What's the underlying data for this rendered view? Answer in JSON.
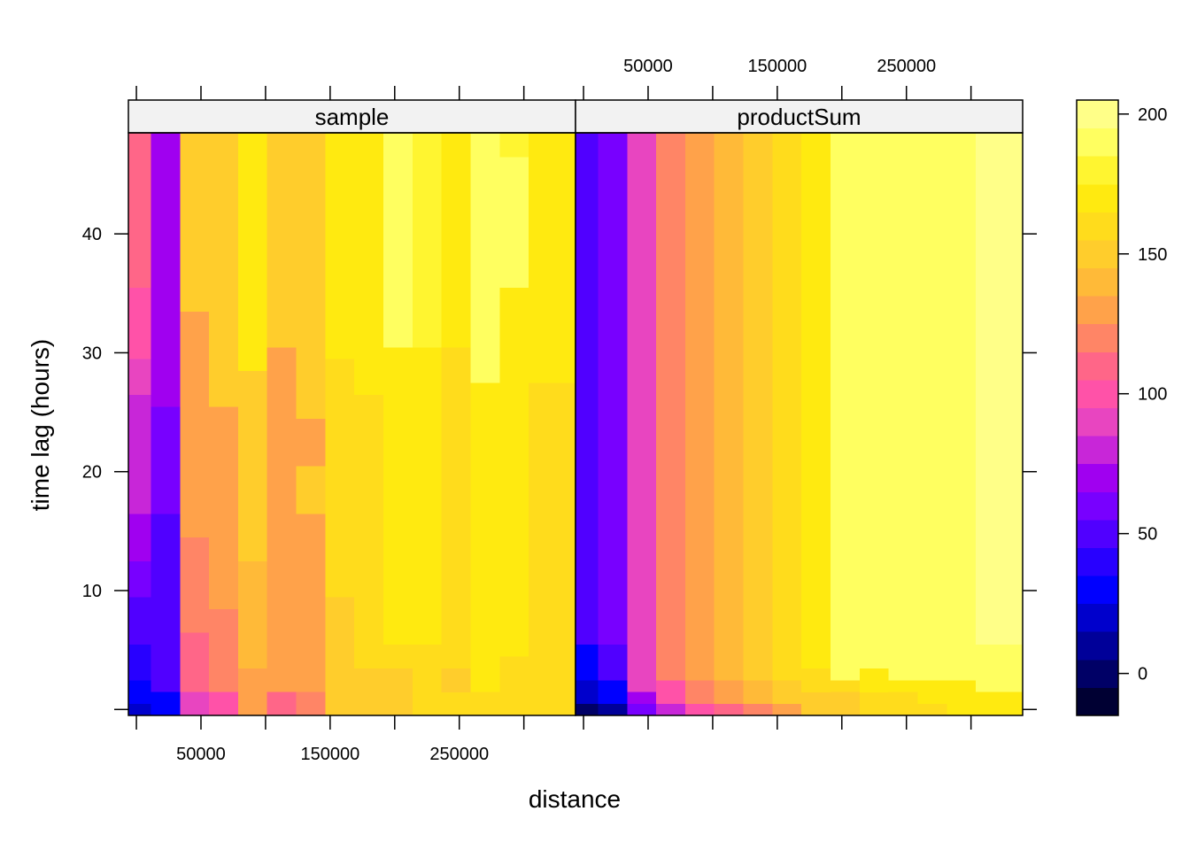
{
  "chart_data": {
    "type": "heatmap",
    "xlabel": "distance",
    "ylabel": "time lag (hours)",
    "x_ticks": [
      0,
      50000,
      100000,
      150000,
      200000,
      250000,
      300000,
      350000
    ],
    "x_tick_labels": [
      {
        "value": 50000,
        "label": "50000"
      },
      {
        "value": 150000,
        "label": "150000"
      },
      {
        "value": 250000,
        "label": "250000"
      }
    ],
    "y_ticks": [
      0,
      10,
      20,
      30,
      40
    ],
    "y_tick_labels": [
      {
        "value": 10,
        "label": "10"
      },
      {
        "value": 20,
        "label": "20"
      },
      {
        "value": 30,
        "label": "30"
      },
      {
        "value": 40,
        "label": "40"
      }
    ],
    "xlim": [
      -6200,
      340000
    ],
    "ylim": [
      -0.5,
      48.5
    ],
    "x_breaks": [
      0,
      22500,
      45000,
      67500,
      90000,
      112500,
      135000,
      157500,
      180000,
      202500,
      225000,
      247500,
      270000,
      292500,
      315000,
      337500
    ],
    "y_breaks": [
      0,
      1,
      2,
      3,
      4,
      5,
      6,
      7,
      8,
      9,
      10,
      11,
      12,
      13,
      14,
      15,
      16,
      17,
      18,
      19,
      20,
      21,
      22,
      23,
      24,
      25,
      26,
      27,
      28,
      29,
      30,
      31,
      32,
      33,
      34,
      35,
      36,
      37,
      38,
      39,
      40,
      41,
      42,
      43,
      44,
      45,
      46,
      47,
      48
    ],
    "colorbar": {
      "breaks": [
        -15,
        -5,
        5,
        15,
        25,
        35,
        45,
        55,
        65,
        75,
        85,
        95,
        105,
        115,
        125,
        135,
        145,
        155,
        165,
        175,
        185,
        195,
        205
      ],
      "colors": [
        "#000033",
        "#000066",
        "#000099",
        "#0000CC",
        "#0000FF",
        "#2800FF",
        "#5000FF",
        "#7800FF",
        "#A000F0",
        "#C826D8",
        "#E845C0",
        "#FF52A8",
        "#FF6688",
        "#FF8566",
        "#FFA24A",
        "#FFBA38",
        "#FFCD2C",
        "#FFDC1C",
        "#FFEA10",
        "#FFF530",
        "#FFFF60",
        "#FFFF88"
      ],
      "ticks": [
        {
          "value": 0,
          "label": "0"
        },
        {
          "value": 50,
          "label": "50"
        },
        {
          "value": 100,
          "label": "100"
        },
        {
          "value": 150,
          "label": "150"
        },
        {
          "value": 200,
          "label": "200"
        }
      ]
    },
    "panels": [
      {
        "name": "sample",
        "strip_label": "sample",
        "columns": [
          {
            "x_range": [
              0,
              22500
            ],
            "rows": [
              [
                0,
                1,
                20
              ],
              [
                1,
                3,
                30
              ],
              [
                3,
                6,
                40
              ],
              [
                6,
                10,
                50
              ],
              [
                10,
                13,
                60
              ],
              [
                13,
                17,
                70
              ],
              [
                17,
                22,
                75
              ],
              [
                22,
                27,
                80
              ],
              [
                27,
                30,
                90
              ],
              [
                30,
                36,
                100
              ],
              [
                36,
                48,
                105
              ]
            ]
          },
          {
            "x_range": [
              22500,
              45000
            ],
            "rows": [
              [
                0,
                2,
                25
              ],
              [
                2,
                7,
                45
              ],
              [
                7,
                17,
                50
              ],
              [
                17,
                22,
                55
              ],
              [
                22,
                26,
                60
              ],
              [
                26,
                48,
                65
              ]
            ]
          },
          {
            "x_range": [
              45000,
              67500
            ],
            "rows": [
              [
                0,
                2,
                90
              ],
              [
                2,
                7,
                105
              ],
              [
                7,
                15,
                115
              ],
              [
                15,
                34,
                130
              ],
              [
                34,
                48,
                145
              ]
            ]
          },
          {
            "x_range": [
              67500,
              90000
            ],
            "rows": [
              [
                0,
                2,
                100
              ],
              [
                2,
                9,
                115
              ],
              [
                9,
                26,
                130
              ],
              [
                26,
                48,
                145
              ]
            ]
          },
          {
            "x_range": [
              90000,
              112500
            ],
            "rows": [
              [
                0,
                4,
                130
              ],
              [
                4,
                13,
                140
              ],
              [
                13,
                29,
                150
              ],
              [
                29,
                48,
                170
              ]
            ]
          },
          {
            "x_range": [
              112500,
              135000
            ],
            "rows": [
              [
                0,
                2,
                105
              ],
              [
                2,
                13,
                125
              ],
              [
                13,
                31,
                130
              ],
              [
                31,
                48,
                145
              ]
            ]
          },
          {
            "x_range": [
              135000,
              157500
            ],
            "rows": [
              [
                0,
                2,
                115
              ],
              [
                2,
                13,
                125
              ],
              [
                13,
                17,
                130
              ],
              [
                17,
                21,
                150
              ],
              [
                21,
                25,
                130
              ],
              [
                25,
                48,
                145
              ]
            ]
          },
          {
            "x_range": [
              157500,
              180000
            ],
            "rows": [
              [
                0,
                10,
                145
              ],
              [
                10,
                30,
                155
              ],
              [
                30,
                48,
                170
              ]
            ]
          },
          {
            "x_range": [
              180000,
              202500
            ],
            "rows": [
              [
                0,
                4,
                145
              ],
              [
                4,
                10,
                155
              ],
              [
                10,
                27,
                160
              ],
              [
                27,
                48,
                170
              ]
            ]
          },
          {
            "x_range": [
              202500,
              225000
            ],
            "rows": [
              [
                0,
                4,
                145
              ],
              [
                4,
                6,
                155
              ],
              [
                6,
                31,
                170
              ],
              [
                31,
                48,
                185
              ]
            ]
          },
          {
            "x_range": [
              225000,
              247500
            ],
            "rows": [
              [
                0,
                4,
                155
              ],
              [
                4,
                6,
                160
              ],
              [
                6,
                31,
                170
              ],
              [
                31,
                48,
                180
              ]
            ]
          },
          {
            "x_range": [
              247500,
              270000
            ],
            "rows": [
              [
                0,
                2,
                155
              ],
              [
                2,
                4,
                145
              ],
              [
                4,
                31,
                160
              ],
              [
                31,
                48,
                170
              ]
            ]
          },
          {
            "x_range": [
              270000,
              292500
            ],
            "rows": [
              [
                0,
                2,
                160
              ],
              [
                2,
                28,
                170
              ],
              [
                28,
                48,
                185
              ]
            ]
          },
          {
            "x_range": [
              292500,
              315000
            ],
            "rows": [
              [
                0,
                5,
                160
              ],
              [
                5,
                36,
                170
              ],
              [
                36,
                47,
                185
              ],
              [
                47,
                48,
                180
              ]
            ]
          },
          {
            "x_range": [
              315000,
              337500
            ],
            "rows": [
              [
                0,
                2,
                160
              ],
              [
                2,
                4,
                155
              ],
              [
                4,
                28,
                160
              ],
              [
                28,
                48,
                170
              ]
            ]
          }
        ]
      },
      {
        "name": "productSum",
        "strip_label": "productSum",
        "columns": [
          {
            "x_range": [
              0,
              22500
            ],
            "rows": [
              [
                0,
                1,
                0
              ],
              [
                1,
                3,
                15
              ],
              [
                3,
                6,
                30
              ],
              [
                6,
                48,
                45
              ]
            ]
          },
          {
            "x_range": [
              22500,
              45000
            ],
            "rows": [
              [
                0,
                1,
                10
              ],
              [
                1,
                3,
                25
              ],
              [
                3,
                6,
                45
              ],
              [
                6,
                48,
                60
              ]
            ]
          },
          {
            "x_range": [
              45000,
              67500
            ],
            "rows": [
              [
                0,
                1,
                55
              ],
              [
                1,
                2,
                70
              ],
              [
                2,
                48,
                90
              ]
            ]
          },
          {
            "x_range": [
              67500,
              90000
            ],
            "rows": [
              [
                0,
                1,
                80
              ],
              [
                1,
                3,
                95
              ],
              [
                3,
                48,
                115
              ]
            ]
          },
          {
            "x_range": [
              90000,
              112500
            ],
            "rows": [
              [
                0,
                1,
                100
              ],
              [
                1,
                3,
                115
              ],
              [
                3,
                48,
                130
              ]
            ]
          },
          {
            "x_range": [
              112500,
              135000
            ],
            "rows": [
              [
                0,
                1,
                110
              ],
              [
                1,
                3,
                125
              ],
              [
                3,
                48,
                140
              ]
            ]
          },
          {
            "x_range": [
              135000,
              157500
            ],
            "rows": [
              [
                0,
                1,
                120
              ],
              [
                1,
                3,
                140
              ],
              [
                3,
                48,
                150
              ]
            ]
          },
          {
            "x_range": [
              157500,
              180000
            ],
            "rows": [
              [
                0,
                1,
                130
              ],
              [
                1,
                3,
                145
              ],
              [
                3,
                48,
                160
              ]
            ]
          },
          {
            "x_range": [
              180000,
              202500
            ],
            "rows": [
              [
                0,
                2,
                145
              ],
              [
                2,
                4,
                160
              ],
              [
                4,
                48,
                170
              ]
            ]
          },
          {
            "x_range": [
              202500,
              225000
            ],
            "rows": [
              [
                0,
                2,
                150
              ],
              [
                2,
                3,
                160
              ],
              [
                3,
                48,
                185
              ]
            ]
          },
          {
            "x_range": [
              225000,
              247500
            ],
            "rows": [
              [
                0,
                2,
                155
              ],
              [
                2,
                4,
                170
              ],
              [
                4,
                48,
                185
              ]
            ]
          },
          {
            "x_range": [
              247500,
              270000
            ],
            "rows": [
              [
                0,
                2,
                160
              ],
              [
                2,
                3,
                170
              ],
              [
                3,
                48,
                185
              ]
            ]
          },
          {
            "x_range": [
              270000,
              292500
            ],
            "rows": [
              [
                0,
                1,
                160
              ],
              [
                1,
                3,
                170
              ],
              [
                3,
                48,
                185
              ]
            ]
          },
          {
            "x_range": [
              292500,
              315000
            ],
            "rows": [
              [
                0,
                1,
                165
              ],
              [
                1,
                3,
                170
              ],
              [
                3,
                48,
                185
              ]
            ]
          },
          {
            "x_range": [
              315000,
              337500
            ],
            "rows": [
              [
                0,
                2,
                170
              ],
              [
                2,
                6,
                185
              ],
              [
                6,
                48,
                195
              ]
            ]
          }
        ]
      }
    ]
  }
}
